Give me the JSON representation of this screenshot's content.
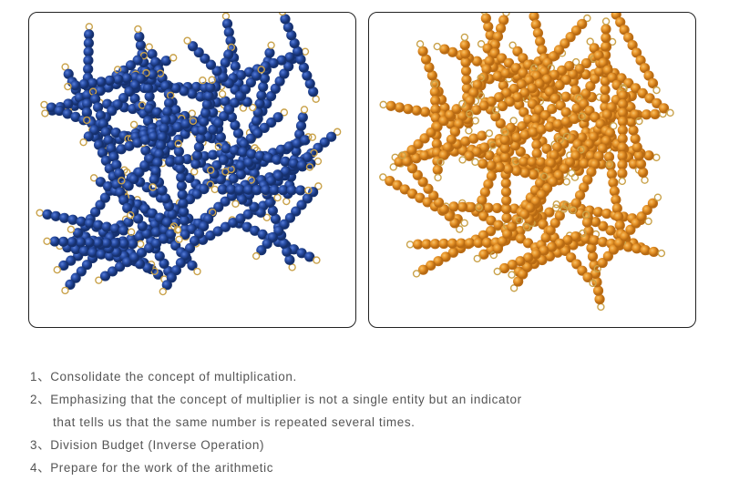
{
  "photos": [
    {
      "name": "blue-bead-bars",
      "bead_color": "#2a4fa8",
      "highlight": "#5a7fd8",
      "shadow": "#15306e"
    },
    {
      "name": "golden-bead-bars",
      "bead_color": "#e8952a",
      "highlight": "#f6c26a",
      "shadow": "#b86a12"
    }
  ],
  "loop_color": "#c9a24a",
  "list": {
    "items": [
      "1、Consolidate the concept of multiplication.",
      "2、Emphasizing that the concept of multiplier is not a single entity but an indicator",
      "that tells us that the same number is repeated several times.",
      "3、Division Budget (Inverse Operation)",
      "4、Prepare for the work of the arithmetic"
    ]
  }
}
